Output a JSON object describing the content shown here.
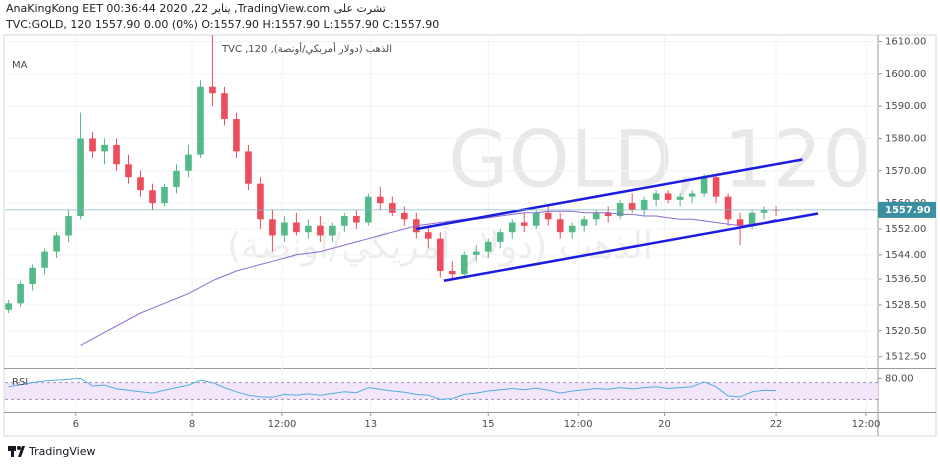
{
  "header": {
    "line1": "AnaKingKong EET 00:36:44 2020 ,22 يناير ,TradingView.com تشرت على",
    "line2": "TVC:GOLD, 120 1557.90 0.00 (0%) O:1557.90 H:1557.90 L:1557.90 C:1557.90"
  },
  "chart_data": {
    "type": "candlestick",
    "symbol_label": "الذهب (دولار أمريكي/أونصة), 120, TVC",
    "watermark": "GOLD, 120",
    "watermark_sub": "الذهب (دولار أمريكي/أونصة)",
    "x": [
      0,
      1,
      2,
      3,
      4,
      5,
      6,
      7,
      8,
      9,
      10,
      11,
      12,
      13,
      14,
      15,
      16,
      17,
      18,
      19,
      20,
      21,
      22,
      23,
      24,
      25,
      26,
      27,
      28,
      29,
      30,
      31,
      32,
      33,
      34,
      35,
      36,
      37,
      38,
      39,
      40,
      41,
      42,
      43,
      44,
      45,
      46,
      47,
      48,
      49,
      50,
      51,
      52,
      53,
      54,
      55,
      56,
      57,
      58,
      59,
      60,
      61,
      62,
      63,
      64
    ],
    "open": [
      1527,
      1529,
      1535,
      1540,
      1545,
      1550,
      1556,
      1580,
      1576,
      1578,
      1572,
      1568,
      1564,
      1560,
      1565,
      1570,
      1575,
      1596,
      1594,
      1586,
      1576,
      1566,
      1555,
      1550,
      1554,
      1551,
      1553,
      1550,
      1553,
      1556,
      1554,
      1562,
      1560,
      1557,
      1555,
      1551,
      1549,
      1539,
      1538,
      1544,
      1545,
      1548,
      1551,
      1554,
      1553,
      1557,
      1555,
      1551,
      1553,
      1555,
      1557,
      1556,
      1560,
      1558,
      1561,
      1563,
      1561,
      1562,
      1563,
      1568,
      1562,
      1555,
      1553,
      1557,
      1558
    ],
    "high": [
      1530,
      1536,
      1541,
      1546,
      1551,
      1558,
      1588,
      1582,
      1580,
      1580,
      1575,
      1570,
      1566,
      1566,
      1572,
      1578,
      1598,
      1612,
      1596,
      1588,
      1578,
      1568,
      1558,
      1556,
      1557,
      1555,
      1556,
      1554,
      1557,
      1558,
      1563,
      1565,
      1562,
      1559,
      1557,
      1553,
      1551,
      1542,
      1545,
      1547,
      1549,
      1552,
      1555,
      1557,
      1558,
      1559,
      1557,
      1554,
      1556,
      1558,
      1559,
      1561,
      1563,
      1562,
      1564,
      1564,
      1563,
      1564,
      1569,
      1569,
      1563,
      1557,
      1558,
      1559,
      1559
    ],
    "low": [
      1526,
      1528,
      1533,
      1538,
      1543,
      1548,
      1555,
      1574,
      1572,
      1570,
      1566,
      1562,
      1558,
      1559,
      1563,
      1568,
      1574,
      1590,
      1584,
      1574,
      1564,
      1552,
      1545,
      1548,
      1550,
      1549,
      1548,
      1548,
      1551,
      1552,
      1553,
      1558,
      1556,
      1553,
      1549,
      1546,
      1537,
      1536,
      1537,
      1542,
      1543,
      1546,
      1549,
      1551,
      1552,
      1553,
      1549,
      1549,
      1551,
      1553,
      1554,
      1555,
      1557,
      1556,
      1559,
      1560,
      1559,
      1560,
      1562,
      1560,
      1553,
      1547,
      1552,
      1555,
      1556
    ],
    "close": [
      1529,
      1535,
      1540,
      1545,
      1550,
      1556,
      1580,
      1576,
      1578,
      1572,
      1568,
      1564,
      1560,
      1565,
      1570,
      1575,
      1596,
      1594,
      1586,
      1576,
      1566,
      1555,
      1550,
      1554,
      1551,
      1553,
      1550,
      1553,
      1556,
      1554,
      1562,
      1560,
      1557,
      1555,
      1551,
      1549,
      1539,
      1538,
      1544,
      1545,
      1548,
      1551,
      1554,
      1553,
      1557,
      1555,
      1551,
      1553,
      1555,
      1557,
      1556,
      1560,
      1558,
      1561,
      1563,
      1561,
      1562,
      1563,
      1568,
      1562,
      1555,
      1553,
      1557,
      1558,
      1557.9
    ],
    "up_color": "#53b987",
    "down_color": "#eb4d5c",
    "xlim": [
      -0.3,
      72.5
    ],
    "xticks": [
      {
        "value": 5.6,
        "label": "6"
      },
      {
        "value": 15.3,
        "label": "8"
      },
      {
        "value": 22.8,
        "label": "12:00"
      },
      {
        "value": 30.2,
        "label": "13"
      },
      {
        "value": 40,
        "label": "15"
      },
      {
        "value": 47.5,
        "label": "12:00"
      },
      {
        "value": 54.7,
        "label": "20"
      },
      {
        "value": 64,
        "label": "22"
      },
      {
        "value": 71.5,
        "label": "12:00"
      }
    ],
    "ylim": [
      1509,
      1612
    ],
    "yticks": [
      {
        "value": 1610,
        "label": "1610.00"
      },
      {
        "value": 1600,
        "label": "1600.00"
      },
      {
        "value": 1590,
        "label": "1590.00"
      },
      {
        "value": 1580,
        "label": "1580.00"
      },
      {
        "value": 1570,
        "label": "1570.00"
      },
      {
        "value": 1560,
        "label": "1560.00"
      },
      {
        "value": 1552,
        "label": "1552.00"
      },
      {
        "value": 1544,
        "label": "1544.00"
      },
      {
        "value": 1536.5,
        "label": "1536.50"
      },
      {
        "value": 1528.5,
        "label": "1528.50"
      },
      {
        "value": 1520.5,
        "label": "1520.50"
      },
      {
        "value": 1512.5,
        "label": "1512.50"
      }
    ],
    "grid": true,
    "last_price": {
      "value": 1557.9,
      "label": "1557.90"
    },
    "ma": {
      "name": "MA",
      "color": "#8e6cd0",
      "values": [
        null,
        null,
        null,
        null,
        null,
        null,
        1516,
        1518,
        1520,
        1522,
        1524,
        1526,
        1527.5,
        1529,
        1530.5,
        1532,
        1534,
        1536,
        1537.5,
        1539,
        1540,
        1541,
        1542,
        1543,
        1544,
        1544.5,
        1545,
        1546,
        1547,
        1548,
        1549,
        1550,
        1551,
        1552,
        1553,
        1553.5,
        1554,
        1554.5,
        1555,
        1555,
        1555.5,
        1556,
        1556.5,
        1557,
        1557,
        1557.5,
        1557.5,
        1557.5,
        1557,
        1557,
        1557,
        1556.5,
        1556.5,
        1556,
        1556,
        1555.5,
        1555,
        1555,
        1554.5,
        1554,
        1553.5,
        1553,
        1553.5,
        1554,
        1555
      ]
    },
    "trendlines": [
      {
        "color": "#1c1ce0",
        "x": [
          34,
          66.2
        ],
        "y": [
          1552,
          1573.5
        ]
      },
      {
        "color": "#1c1ce0",
        "x": [
          36.3,
          67.5
        ],
        "y": [
          1536,
          1556.8
        ]
      }
    ],
    "rsi": {
      "name": "RSI",
      "color": "#4fb0e0",
      "ylim": [
        0,
        100
      ],
      "yticks": [
        {
          "value": 80,
          "label": "80.00"
        }
      ],
      "band": [
        30,
        70
      ],
      "band_color": "#f3e6fb",
      "values": [
        60,
        65,
        70,
        74,
        76,
        78,
        80,
        62,
        64,
        55,
        52,
        48,
        45,
        52,
        58,
        64,
        76,
        70,
        58,
        48,
        40,
        36,
        35,
        42,
        40,
        43,
        40,
        44,
        48,
        46,
        58,
        54,
        50,
        47,
        42,
        40,
        30,
        32,
        42,
        45,
        50,
        53,
        56,
        53,
        57,
        52,
        45,
        50,
        53,
        56,
        54,
        58,
        55,
        58,
        60,
        56,
        58,
        60,
        72,
        60,
        38,
        36,
        48,
        52,
        51
      ]
    }
  },
  "footer": {
    "logo": "TradingView"
  }
}
